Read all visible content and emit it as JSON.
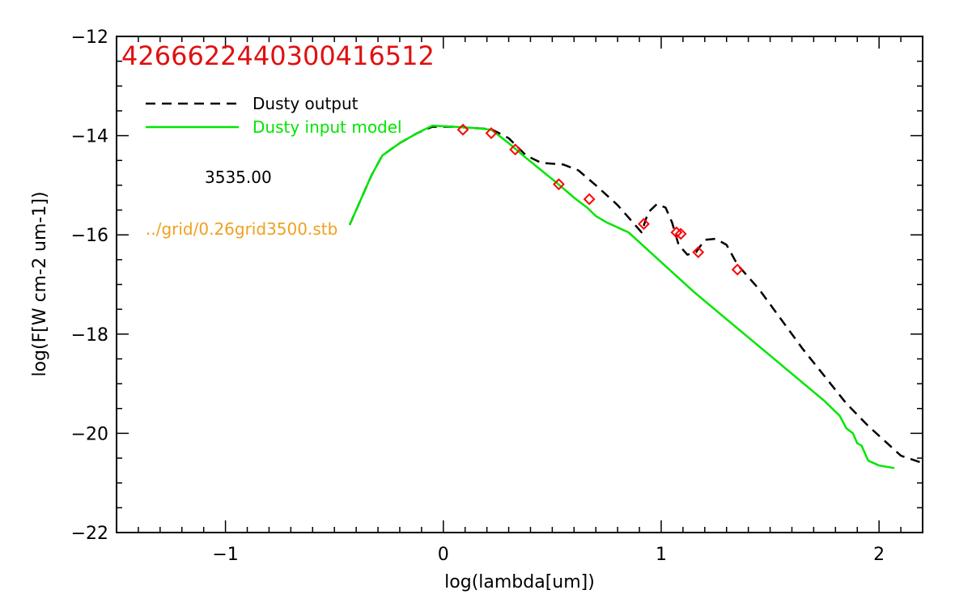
{
  "chart_data": {
    "type": "line",
    "title": "4266622440300416512",
    "xlabel": "log(lambda[um])",
    "ylabel": "log(F[W cm-2 um-1])",
    "xlim": [
      -1.5,
      2.2
    ],
    "ylim": [
      -22,
      -12
    ],
    "x_ticks": [
      -1,
      0,
      1,
      2
    ],
    "x_tick_labels": [
      "−1",
      "0",
      "1",
      "2"
    ],
    "y_ticks": [
      -22,
      -20,
      -18,
      -16,
      -14,
      -12
    ],
    "y_tick_labels": [
      "−22",
      "−20",
      "−18",
      "−16",
      "−14",
      "−12"
    ],
    "x_minor_step": 0.1,
    "y_minor_step": 0.5,
    "grid": false,
    "legend_position": "top-left",
    "series": [
      {
        "name": "Dusty output",
        "color": "#000000",
        "style": "dashed",
        "points": [
          [
            -0.43,
            -15.8
          ],
          [
            -0.38,
            -15.3
          ],
          [
            -0.33,
            -14.8
          ],
          [
            -0.28,
            -14.4
          ],
          [
            -0.2,
            -14.15
          ],
          [
            -0.12,
            -13.95
          ],
          [
            -0.05,
            -13.82
          ],
          [
            0.05,
            -13.82
          ],
          [
            0.15,
            -13.85
          ],
          [
            0.22,
            -13.87
          ],
          [
            0.3,
            -14.05
          ],
          [
            0.38,
            -14.4
          ],
          [
            0.45,
            -14.55
          ],
          [
            0.55,
            -14.58
          ],
          [
            0.62,
            -14.7
          ],
          [
            0.7,
            -15.0
          ],
          [
            0.8,
            -15.4
          ],
          [
            0.88,
            -15.8
          ],
          [
            0.91,
            -15.95
          ],
          [
            0.94,
            -15.55
          ],
          [
            0.98,
            -15.38
          ],
          [
            1.02,
            -15.45
          ],
          [
            1.05,
            -15.75
          ],
          [
            1.08,
            -16.2
          ],
          [
            1.12,
            -16.4
          ],
          [
            1.16,
            -16.35
          ],
          [
            1.2,
            -16.1
          ],
          [
            1.25,
            -16.08
          ],
          [
            1.3,
            -16.2
          ],
          [
            1.35,
            -16.6
          ],
          [
            1.45,
            -17.1
          ],
          [
            1.55,
            -17.7
          ],
          [
            1.65,
            -18.3
          ],
          [
            1.75,
            -18.85
          ],
          [
            1.85,
            -19.4
          ],
          [
            1.95,
            -19.85
          ],
          [
            2.05,
            -20.25
          ],
          [
            2.1,
            -20.45
          ],
          [
            2.2,
            -20.6
          ]
        ]
      },
      {
        "name": "Dusty input model",
        "color": "#00e600",
        "style": "solid",
        "points": [
          [
            -0.43,
            -15.8
          ],
          [
            -0.38,
            -15.3
          ],
          [
            -0.33,
            -14.8
          ],
          [
            -0.28,
            -14.4
          ],
          [
            -0.2,
            -14.15
          ],
          [
            -0.12,
            -13.95
          ],
          [
            -0.05,
            -13.8
          ],
          [
            0.05,
            -13.82
          ],
          [
            0.15,
            -13.85
          ],
          [
            0.22,
            -13.88
          ],
          [
            0.3,
            -14.15
          ],
          [
            0.38,
            -14.45
          ],
          [
            0.45,
            -14.7
          ],
          [
            0.52,
            -14.95
          ],
          [
            0.6,
            -15.25
          ],
          [
            0.66,
            -15.45
          ],
          [
            0.7,
            -15.62
          ],
          [
            0.75,
            -15.75
          ],
          [
            0.85,
            -15.95
          ],
          [
            1.0,
            -16.55
          ],
          [
            1.15,
            -17.15
          ],
          [
            1.3,
            -17.7
          ],
          [
            1.45,
            -18.25
          ],
          [
            1.6,
            -18.8
          ],
          [
            1.75,
            -19.35
          ],
          [
            1.82,
            -19.65
          ],
          [
            1.85,
            -19.9
          ],
          [
            1.88,
            -20.0
          ],
          [
            1.9,
            -20.2
          ],
          [
            1.92,
            -20.25
          ],
          [
            1.95,
            -20.55
          ],
          [
            2.0,
            -20.65
          ],
          [
            2.07,
            -20.7
          ]
        ]
      },
      {
        "name": "",
        "color": "#ff0000",
        "style": "diamond-markers",
        "points": [
          [
            0.09,
            -13.88
          ],
          [
            0.22,
            -13.95
          ],
          [
            0.33,
            -14.28
          ],
          [
            0.53,
            -14.98
          ],
          [
            0.67,
            -15.28
          ],
          [
            0.92,
            -15.78
          ],
          [
            1.07,
            -15.95
          ],
          [
            1.09,
            -15.98
          ],
          [
            1.17,
            -16.35
          ],
          [
            1.35,
            -16.7
          ]
        ]
      }
    ],
    "annotations": {
      "value_text": "3535.00",
      "grid_file": "../grid/0.26grid3500.stb",
      "grid_file_color": "#f0a020",
      "id_color": "#e01010"
    }
  }
}
